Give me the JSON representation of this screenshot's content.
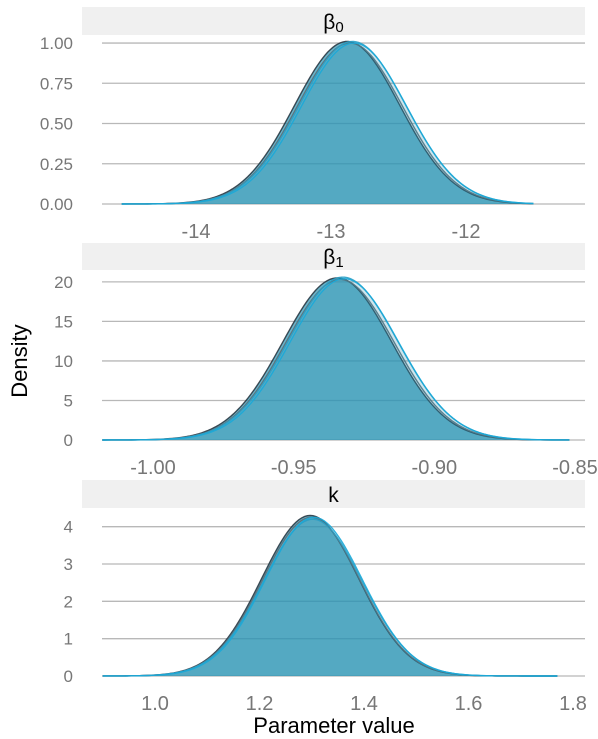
{
  "figure": {
    "xlabel": "Parameter value",
    "ylabel": "Density"
  },
  "style": {
    "panel_strip_fill": "#f0f0f0",
    "grid_color": "#b8b8b8",
    "tick_color": "#777777",
    "fill_color": "#2b94b3",
    "fill_opacity": 0.7,
    "series_colors": [
      "#2a3a45",
      "#5c6f78",
      "#2aa0c7",
      "#1aa8d8"
    ]
  },
  "chart_data": [
    {
      "type": "area",
      "title": "β0",
      "title_base": "β",
      "title_sub": "0",
      "xlim": [
        -14.7,
        -11.3
      ],
      "ylim": [
        0,
        1.05
      ],
      "xticks": [
        -14,
        -13,
        -12
      ],
      "xtick_labels": [
        "-14",
        "-13",
        "-12"
      ],
      "yticks": [
        0,
        0.25,
        0.5,
        0.75,
        1.0
      ],
      "ytick_labels": [
        "0.00",
        "0.25",
        "0.50",
        "0.75",
        "1.00"
      ],
      "x_range": [
        -14.55,
        -11.5
      ],
      "series": [
        {
          "mean": -12.88,
          "sd": 0.39,
          "peak": 1.01
        },
        {
          "mean": -12.86,
          "sd": 0.39,
          "peak": 1.0
        },
        {
          "mean": -12.84,
          "sd": 0.395,
          "peak": 1.01
        },
        {
          "mean": -12.83,
          "sd": 0.39,
          "peak": 1.0
        }
      ]
    },
    {
      "type": "area",
      "title": "β1",
      "title_base": "β",
      "title_sub": "1",
      "xlim": [
        -1.02,
        -0.85
      ],
      "ylim": [
        0,
        21.5
      ],
      "xticks": [
        -1.0,
        -0.95,
        -0.9,
        -0.85
      ],
      "xtick_labels": [
        "-1.00",
        "-0.95",
        "-0.90",
        "-0.85"
      ],
      "yticks": [
        0,
        5,
        10,
        15,
        20
      ],
      "ytick_labels": [
        "0",
        "5",
        "10",
        "15",
        "20"
      ],
      "x_range": [
        -1.018,
        -0.852
      ],
      "series": [
        {
          "mean": -0.9345,
          "sd": 0.0193,
          "peak": 20.5
        },
        {
          "mean": -0.9335,
          "sd": 0.0193,
          "peak": 20.3
        },
        {
          "mean": -0.9325,
          "sd": 0.0195,
          "peak": 20.6
        },
        {
          "mean": -0.932,
          "sd": 0.0193,
          "peak": 20.4
        }
      ]
    },
    {
      "type": "area",
      "title": "k",
      "title_base": "k",
      "title_sub": "",
      "xlim": [
        0.9,
        1.8
      ],
      "ylim": [
        0,
        4.5
      ],
      "xticks": [
        1.0,
        1.2,
        1.4,
        1.6,
        1.8
      ],
      "xtick_labels": [
        "1.0",
        "1.2",
        "1.4",
        "1.6",
        "1.8"
      ],
      "yticks": [
        0,
        1,
        2,
        3,
        4
      ],
      "ytick_labels": [
        "0",
        "1",
        "2",
        "3",
        "4"
      ],
      "x_range": [
        0.9,
        1.77
      ],
      "series": [
        {
          "mean": 1.297,
          "sd": 0.093,
          "peak": 4.3
        },
        {
          "mean": 1.299,
          "sd": 0.093,
          "peak": 4.25
        },
        {
          "mean": 1.302,
          "sd": 0.094,
          "peak": 4.2
        },
        {
          "mean": 1.304,
          "sd": 0.093,
          "peak": 4.25
        }
      ]
    }
  ]
}
